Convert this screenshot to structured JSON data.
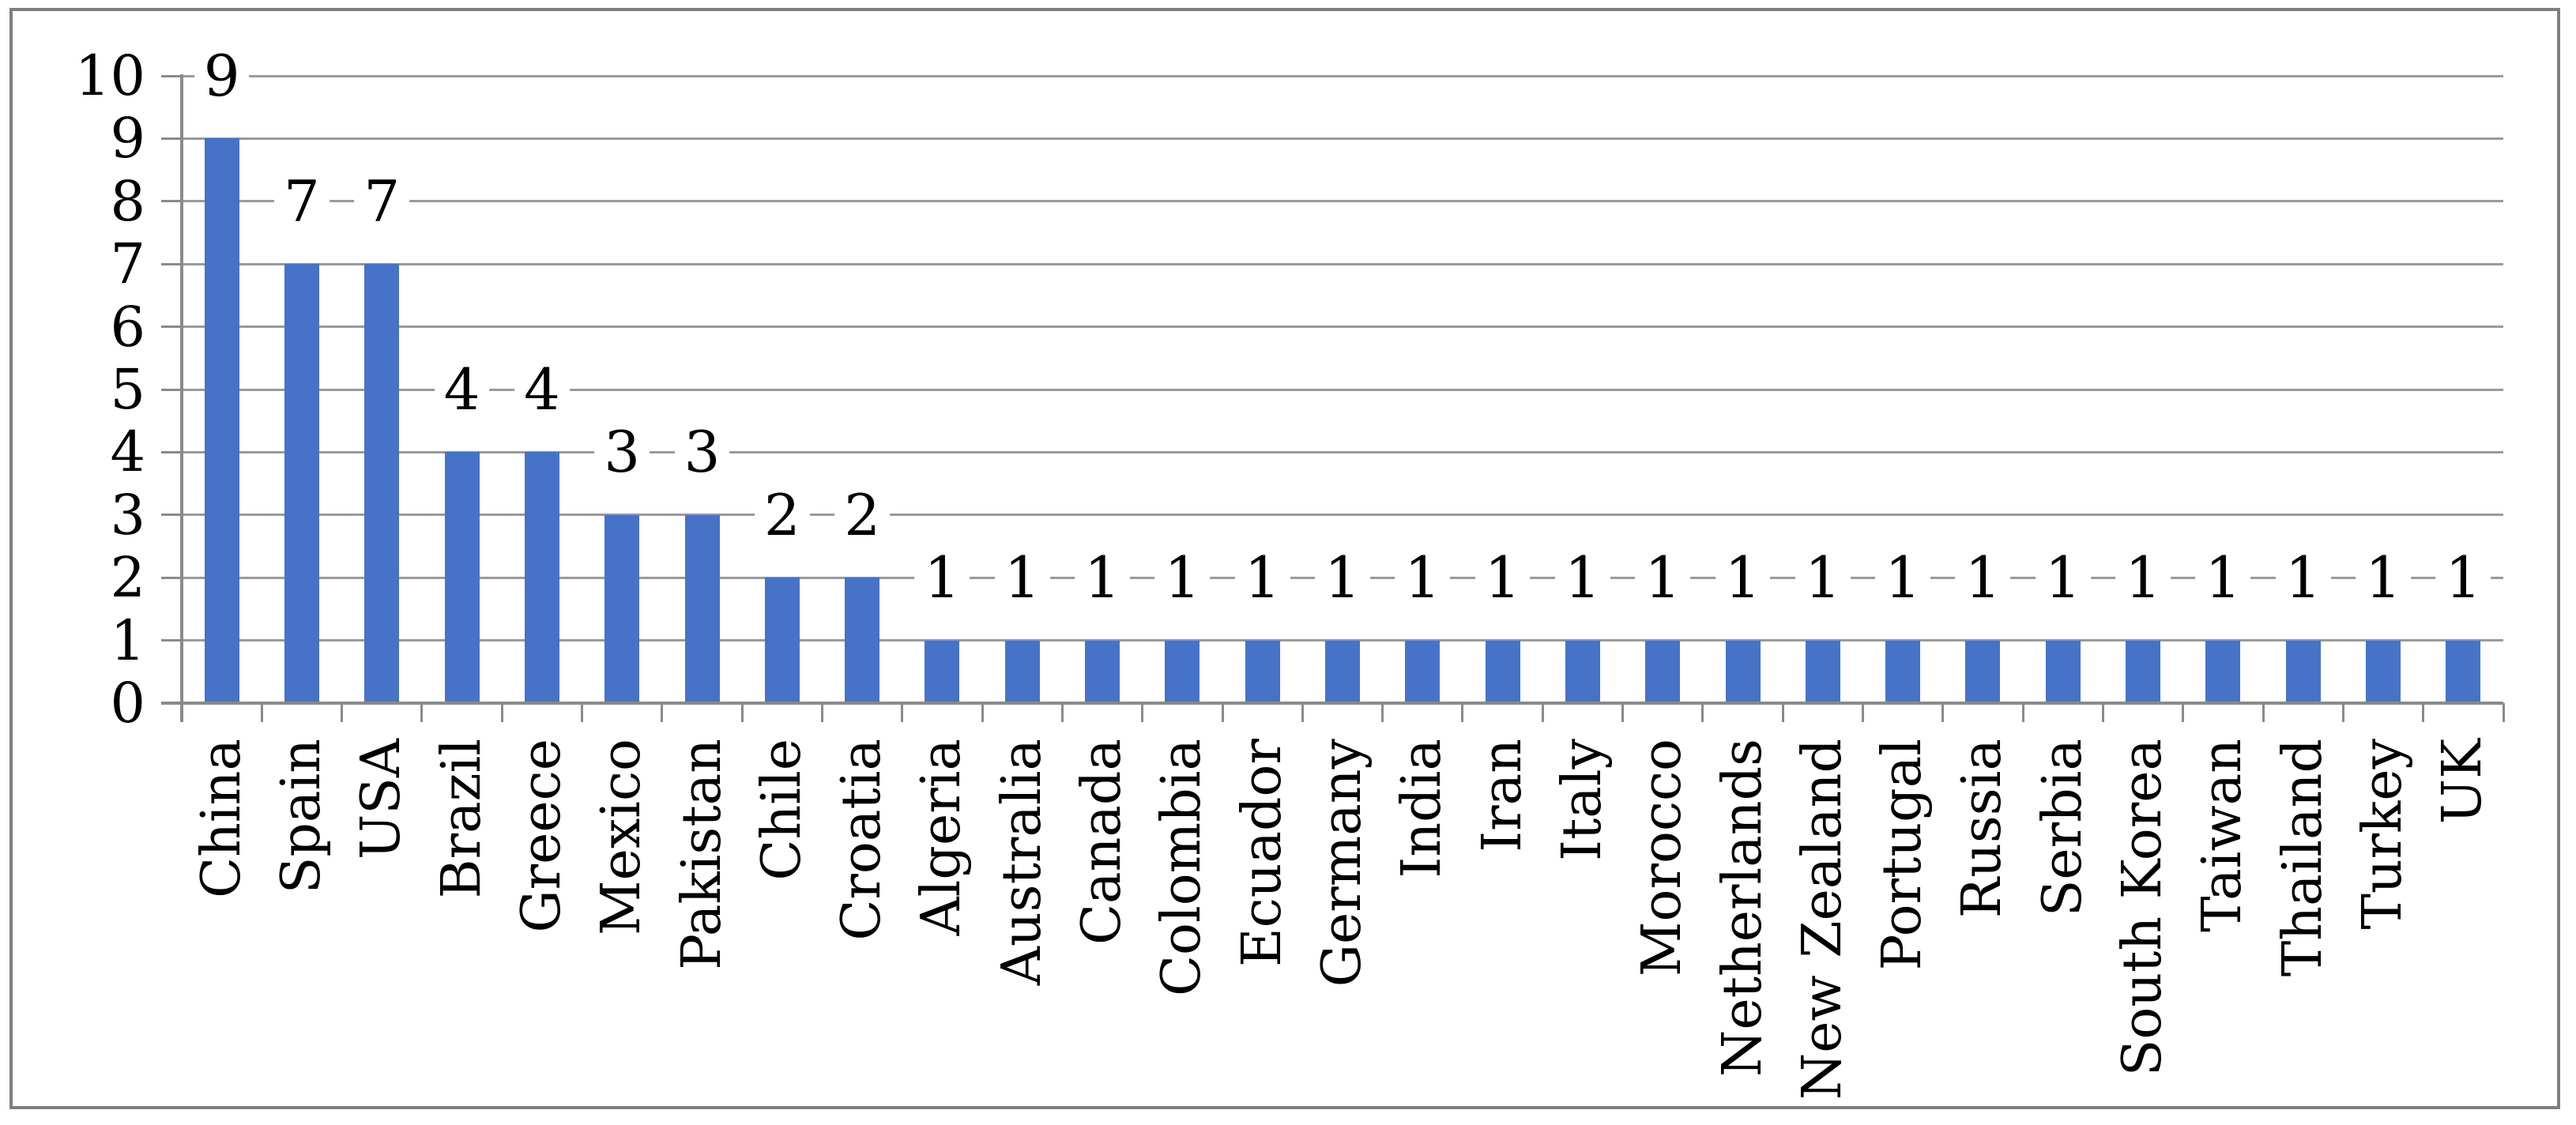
{
  "chart_data": {
    "type": "bar",
    "title": "",
    "xlabel": "",
    "ylabel": "",
    "categories": [
      "China",
      "Spain",
      "USA",
      "Brazil",
      "Greece",
      "Mexico",
      "Pakistan",
      "Chile",
      "Croatia",
      "Algeria",
      "Australia",
      "Canada",
      "Colombia",
      "Ecuador",
      "Germany",
      "India",
      "Iran",
      "Italy",
      "Morocco",
      "Netherlands",
      "New Zealand",
      "Portugal",
      "Russia",
      "Serbia",
      "South Korea",
      "Taiwan",
      "Thailand",
      "Turkey",
      "UK"
    ],
    "values": [
      9,
      7,
      7,
      4,
      4,
      3,
      3,
      2,
      2,
      1,
      1,
      1,
      1,
      1,
      1,
      1,
      1,
      1,
      1,
      1,
      1,
      1,
      1,
      1,
      1,
      1,
      1,
      1,
      1
    ],
    "value_labels": [
      "9",
      "7",
      "7",
      "4",
      "4",
      "3",
      "3",
      "2",
      "2",
      "1",
      "1",
      "1",
      "1",
      "1",
      "1",
      "1",
      "1",
      "1",
      "1",
      "1",
      "1",
      "1",
      "1",
      "1",
      "1",
      "1",
      "1",
      "1",
      "1"
    ],
    "yticks": [
      "0",
      "1",
      "2",
      "3",
      "4",
      "5",
      "6",
      "7",
      "8",
      "9",
      "10"
    ],
    "ylim": [
      0,
      10
    ],
    "grid": true,
    "legend_position": "none",
    "value_labels_visible": true,
    "x_labels_rotated_degrees": 90,
    "colors": {
      "bar": "#4673C8",
      "gridline": "#9a9a9a",
      "axis": "#8a8a8a",
      "tick": "#8a8a8a",
      "frame": "#7f7f7f",
      "text": "#000000",
      "background": "#ffffff"
    }
  }
}
